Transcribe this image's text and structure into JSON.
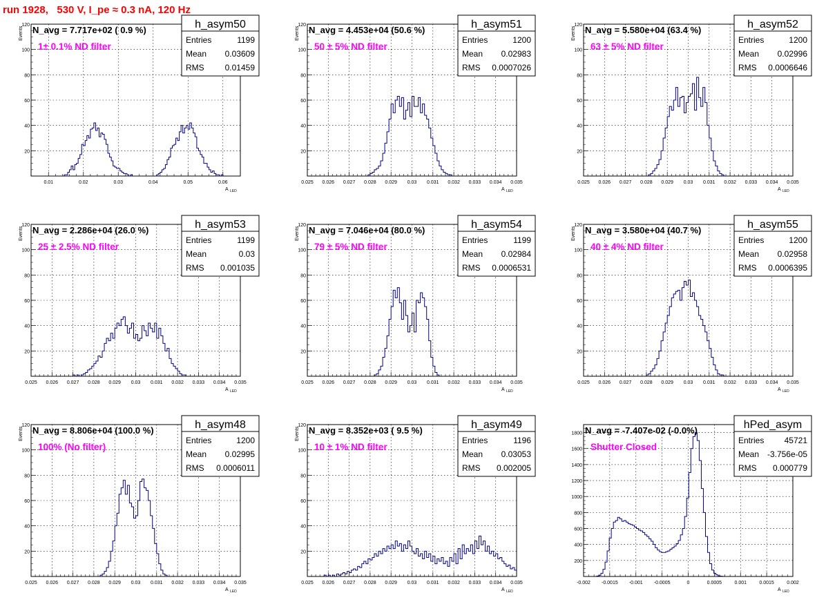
{
  "page": {
    "title": "run 1928,   530 V, I_pe ≈ 0.3 nA, 120 Hz"
  },
  "colors": {
    "title": "#ff0000",
    "histogram": "#00008b",
    "annotation": "#ff00ff",
    "grid": "#000000"
  },
  "chart_data": [
    {
      "type": "bar",
      "name": "h_asym50",
      "navg": "N_avg = 7.717e+02 ( 0.9 %)",
      "filter": "1± 0.1% ND filter",
      "stats": [
        {
          "label": "Entries",
          "value": "1199"
        },
        {
          "label": "Mean",
          "value": "0.03609"
        },
        {
          "label": "RMS",
          "value": "0.01459"
        }
      ],
      "xlabel": "A",
      "xlabel_sub": "LED",
      "ylabel": "Events",
      "xlim": [
        0.005,
        0.065
      ],
      "ylim": [
        0,
        120
      ],
      "xticks": [
        0.01,
        0.02,
        0.03,
        0.04,
        0.05,
        0.06
      ],
      "xtick_labels": [
        "0.01",
        "0.02",
        "0.03",
        "0.04",
        "0.05",
        "0.06"
      ],
      "yticks": [
        20,
        40,
        60,
        80,
        100,
        120
      ],
      "xmin": 0.005,
      "binw": 0.0005,
      "values": [
        0,
        0,
        0,
        0,
        0,
        0,
        0,
        0,
        0,
        0,
        0,
        0,
        0,
        0,
        0,
        0,
        0,
        0,
        0,
        1,
        1,
        3,
        5,
        8,
        5,
        9,
        10,
        14,
        17,
        25,
        24,
        28,
        32,
        30,
        37,
        38,
        42,
        36,
        38,
        31,
        34,
        33,
        29,
        25,
        18,
        15,
        12,
        8,
        7,
        6,
        6,
        4,
        3,
        2,
        2,
        1,
        0,
        1,
        0,
        0,
        0,
        0,
        0,
        0,
        0,
        0,
        0,
        0,
        0,
        0,
        0,
        0,
        1,
        2,
        3,
        5,
        6,
        9,
        13,
        15,
        22,
        24,
        25,
        30,
        28,
        35,
        40,
        34,
        38,
        40,
        37,
        42,
        38,
        34,
        31,
        22,
        20,
        17,
        15,
        10,
        10,
        7,
        5,
        3,
        4,
        2,
        1,
        1,
        0,
        1,
        0,
        0,
        0,
        0,
        0,
        0,
        0,
        0,
        0,
        0,
        0
      ]
    },
    {
      "type": "bar",
      "name": "h_asym51",
      "navg": "N_avg = 4.453e+04 (50.6 %)",
      "filter": "50 ± 5% ND filter",
      "stats": [
        {
          "label": "Entries",
          "value": "1200"
        },
        {
          "label": "Mean",
          "value": "0.02983"
        },
        {
          "label": "RMS",
          "value": "0.0007026"
        }
      ],
      "xlabel": "A",
      "xlabel_sub": "LED",
      "ylabel": "Events",
      "xlim": [
        0.025,
        0.035
      ],
      "ylim": [
        0,
        120
      ],
      "xticks": [
        0.025,
        0.026,
        0.027,
        0.028,
        0.029,
        0.03,
        0.031,
        0.032,
        0.033,
        0.034,
        0.035
      ],
      "xtick_labels": [
        "0.025",
        "0.026",
        "0.027",
        "0.028",
        "0.029",
        "0.03",
        "0.031",
        "0.032",
        "0.033",
        "0.034",
        "0.035"
      ],
      "yticks": [
        20,
        40,
        60,
        80,
        100,
        120
      ],
      "xmin": 0.0279,
      "binw": 0.0001,
      "values": [
        1,
        2,
        3,
        5,
        6,
        8,
        12,
        18,
        26,
        35,
        45,
        57,
        50,
        60,
        63,
        55,
        62,
        45,
        52,
        58,
        47,
        63,
        55,
        55,
        62,
        50,
        57,
        48,
        45,
        38,
        30,
        24,
        18,
        12,
        8,
        5,
        3,
        2,
        1,
        1
      ]
    },
    {
      "type": "bar",
      "name": "h_asym52",
      "navg": "N_avg = 5.580e+04 (63.4 %)",
      "filter": "63 ± 5% ND filter",
      "stats": [
        {
          "label": "Entries",
          "value": "1200"
        },
        {
          "label": "Mean",
          "value": "0.02996"
        },
        {
          "label": "RMS",
          "value": "0.0006646"
        }
      ],
      "xlabel": "A",
      "xlabel_sub": "LED",
      "ylabel": "Events",
      "xlim": [
        0.025,
        0.035
      ],
      "ylim": [
        0,
        120
      ],
      "xticks": [
        0.025,
        0.026,
        0.027,
        0.028,
        0.029,
        0.03,
        0.031,
        0.032,
        0.033,
        0.034,
        0.035
      ],
      "xtick_labels": [
        "0.025",
        "0.026",
        "0.027",
        "0.028",
        "0.029",
        "0.03",
        "0.031",
        "0.032",
        "0.033",
        "0.034",
        "0.035"
      ],
      "yticks": [
        20,
        40,
        60,
        80,
        100,
        120
      ],
      "xmin": 0.0281,
      "binw": 0.0001,
      "values": [
        1,
        2,
        4,
        6,
        9,
        13,
        20,
        30,
        38,
        47,
        55,
        52,
        60,
        70,
        55,
        62,
        63,
        50,
        58,
        63,
        65,
        73,
        52,
        78,
        62,
        55,
        70,
        58,
        40,
        30,
        20,
        12,
        8,
        4,
        2,
        1
      ]
    },
    {
      "type": "bar",
      "name": "h_asym53",
      "navg": "N_avg = 2.286e+04 (26.0 %)",
      "filter": "25 ± 2.5% ND filter",
      "stats": [
        {
          "label": "Entries",
          "value": "1199"
        },
        {
          "label": "Mean",
          "value": "0.03"
        },
        {
          "label": "RMS",
          "value": "0.001035"
        }
      ],
      "xlabel": "A",
      "xlabel_sub": "LED",
      "ylabel": "Events",
      "xlim": [
        0.025,
        0.035
      ],
      "ylim": [
        0,
        120
      ],
      "xticks": [
        0.025,
        0.026,
        0.027,
        0.028,
        0.029,
        0.03,
        0.031,
        0.032,
        0.033,
        0.034,
        0.035
      ],
      "xtick_labels": [
        "0.025",
        "0.026",
        "0.027",
        "0.028",
        "0.029",
        "0.03",
        "0.031",
        "0.032",
        "0.033",
        "0.034",
        "0.035"
      ],
      "yticks": [
        20,
        40,
        60,
        80,
        100,
        120
      ],
      "xmin": 0.027,
      "binw": 0.0001,
      "values": [
        1,
        0,
        1,
        0,
        1,
        2,
        3,
        5,
        6,
        8,
        10,
        12,
        16,
        15,
        20,
        26,
        30,
        28,
        34,
        30,
        38,
        42,
        40,
        45,
        47,
        40,
        34,
        38,
        42,
        30,
        33,
        28,
        30,
        40,
        36,
        32,
        42,
        38,
        35,
        42,
        30,
        38,
        32,
        26,
        20,
        22,
        14,
        10,
        8,
        6,
        4,
        2,
        1,
        1
      ]
    },
    {
      "type": "bar",
      "name": "h_asym54",
      "navg": "N_avg = 7.046e+04 (80.0 %)",
      "filter": "79 ± 5% ND filter",
      "stats": [
        {
          "label": "Entries",
          "value": "1199"
        },
        {
          "label": "Mean",
          "value": "0.02984"
        },
        {
          "label": "RMS",
          "value": "0.0006531"
        }
      ],
      "xlabel": "A",
      "xlabel_sub": "LED",
      "ylabel": "Events",
      "xlim": [
        0.025,
        0.035
      ],
      "ylim": [
        0,
        120
      ],
      "xticks": [
        0.025,
        0.026,
        0.027,
        0.028,
        0.029,
        0.03,
        0.031,
        0.032,
        0.033,
        0.034,
        0.035
      ],
      "xtick_labels": [
        "0.025",
        "0.026",
        "0.027",
        "0.028",
        "0.029",
        "0.03",
        "0.031",
        "0.032",
        "0.033",
        "0.034",
        "0.035"
      ],
      "yticks": [
        20,
        40,
        60,
        80,
        100,
        120
      ],
      "xmin": 0.0282,
      "binw": 0.0001,
      "values": [
        1,
        2,
        5,
        8,
        15,
        22,
        32,
        45,
        55,
        68,
        62,
        70,
        58,
        45,
        60,
        48,
        35,
        40,
        50,
        35,
        60,
        58,
        66,
        62,
        55,
        45,
        28,
        15,
        8,
        3,
        1
      ]
    },
    {
      "type": "bar",
      "name": "h_asym55",
      "navg": "N_avg = 3.580e+04 (40.7 %)",
      "filter": "40 ± 4% ND filter",
      "stats": [
        {
          "label": "Entries",
          "value": "1200"
        },
        {
          "label": "Mean",
          "value": "0.02958"
        },
        {
          "label": "RMS",
          "value": "0.0006395"
        }
      ],
      "xlabel": "A",
      "xlabel_sub": "LED",
      "ylabel": "Events",
      "xlim": [
        0.025,
        0.035
      ],
      "ylim": [
        0,
        120
      ],
      "xticks": [
        0.025,
        0.026,
        0.027,
        0.028,
        0.029,
        0.03,
        0.031,
        0.032,
        0.033,
        0.034,
        0.035
      ],
      "xtick_labels": [
        "0.025",
        "0.026",
        "0.027",
        "0.028",
        "0.029",
        "0.03",
        "0.031",
        "0.032",
        "0.033",
        "0.034",
        "0.035"
      ],
      "yticks": [
        20,
        40,
        60,
        80,
        100,
        120
      ],
      "xmin": 0.028,
      "binw": 0.0001,
      "values": [
        1,
        2,
        4,
        6,
        9,
        14,
        20,
        28,
        35,
        42,
        48,
        55,
        62,
        65,
        67,
        68,
        60,
        70,
        75,
        72,
        76,
        63,
        66,
        60,
        55,
        48,
        45,
        40,
        35,
        28,
        22,
        15,
        9,
        5,
        2,
        1,
        1
      ]
    },
    {
      "type": "bar",
      "name": "h_asym48",
      "navg": "N_avg = 8.806e+04 (100.0 %)",
      "filter": "100% (No filter)",
      "stats": [
        {
          "label": "Entries",
          "value": "1200"
        },
        {
          "label": "Mean",
          "value": "0.02995"
        },
        {
          "label": "RMS",
          "value": "0.0006011"
        }
      ],
      "xlabel": "A",
      "xlabel_sub": "LED",
      "ylabel": "Events",
      "xlim": [
        0.025,
        0.035
      ],
      "ylim": [
        0,
        120
      ],
      "xticks": [
        0.025,
        0.026,
        0.027,
        0.028,
        0.029,
        0.03,
        0.031,
        0.032,
        0.033,
        0.034,
        0.035
      ],
      "xtick_labels": [
        "0.025",
        "0.026",
        "0.027",
        "0.028",
        "0.029",
        "0.03",
        "0.031",
        "0.032",
        "0.033",
        "0.034",
        "0.035"
      ],
      "yticks": [
        20,
        40,
        60,
        80,
        100,
        120
      ],
      "xmin": 0.0283,
      "binw": 0.0001,
      "values": [
        1,
        2,
        4,
        7,
        12,
        20,
        28,
        40,
        50,
        65,
        70,
        76,
        65,
        72,
        58,
        55,
        46,
        48,
        60,
        75,
        77,
        70,
        68,
        60,
        48,
        38,
        26,
        18,
        10,
        5,
        2,
        1
      ]
    },
    {
      "type": "bar",
      "name": "h_asym49",
      "navg": "N_avg = 8.352e+03 ( 9.5 %)",
      "filter": "10 ± 1% ND filter",
      "stats": [
        {
          "label": "Entries",
          "value": "1196"
        },
        {
          "label": "Mean",
          "value": "0.03053"
        },
        {
          "label": "RMS",
          "value": "0.002005"
        }
      ],
      "xlabel": "A",
      "xlabel_sub": "LED",
      "ylabel": "Events",
      "xlim": [
        0.025,
        0.035
      ],
      "ylim": [
        0,
        120
      ],
      "xticks": [
        0.025,
        0.026,
        0.027,
        0.028,
        0.029,
        0.03,
        0.031,
        0.032,
        0.033,
        0.034,
        0.035
      ],
      "xtick_labels": [
        "0.025",
        "0.026",
        "0.027",
        "0.028",
        "0.029",
        "0.03",
        "0.031",
        "0.032",
        "0.033",
        "0.034",
        "0.035"
      ],
      "yticks": [
        20,
        40,
        60,
        80,
        100,
        120
      ],
      "xmin": 0.0258,
      "binw": 0.0001,
      "values": [
        1,
        0,
        1,
        0,
        1,
        0,
        2,
        1,
        2,
        3,
        2,
        4,
        3,
        5,
        6,
        5,
        8,
        7,
        10,
        12,
        10,
        14,
        13,
        15,
        18,
        16,
        20,
        18,
        22,
        20,
        24,
        22,
        25,
        22,
        28,
        24,
        26,
        20,
        25,
        22,
        28,
        24,
        20,
        18,
        22,
        16,
        18,
        14,
        20,
        15,
        18,
        12,
        16,
        10,
        14,
        12,
        15,
        10,
        12,
        8,
        15,
        12,
        18,
        10,
        22,
        14,
        25,
        18,
        22,
        20,
        25,
        18,
        28,
        22,
        32,
        25,
        28,
        20,
        24,
        18,
        20,
        16,
        18,
        14,
        15,
        12,
        10,
        8,
        9,
        6,
        7,
        5,
        4,
        3,
        4,
        2,
        3,
        2,
        1,
        1,
        0,
        2,
        1,
        0,
        1
      ]
    },
    {
      "type": "bar",
      "name": "hPed_asym",
      "navg": "N_avg = -7.407e-02 (-0.0%)",
      "filter": "Shutter Closed",
      "stats": [
        {
          "label": "Entries",
          "value": "45721"
        },
        {
          "label": "Mean",
          "value": "-3.756e-05"
        },
        {
          "label": "RMS",
          "value": "0.000779"
        }
      ],
      "xlabel": "A",
      "xlabel_sub": "LED",
      "ylabel": "",
      "xlim": [
        -0.002,
        0.002
      ],
      "ylim": [
        0,
        1900
      ],
      "xticks": [
        -0.002,
        -0.0015,
        -0.001,
        -0.0005,
        0,
        0.0005,
        0.001,
        0.0015,
        0.002
      ],
      "xtick_labels": [
        "-0.002",
        "-0.0015",
        "-0.001",
        "-0.0005",
        "0",
        "0.0005",
        "0.001",
        "0.0015",
        "0.002"
      ],
      "yticks": [
        200,
        400,
        600,
        800,
        1000,
        1200,
        1400,
        1600,
        1800
      ],
      "xmin": -0.00175,
      "binw": 4e-05,
      "values": [
        5,
        15,
        40,
        90,
        180,
        320,
        480,
        600,
        680,
        700,
        740,
        720,
        690,
        700,
        680,
        660,
        650,
        640,
        620,
        600,
        580,
        570,
        550,
        520,
        500,
        470,
        440,
        400,
        360,
        330,
        310,
        300,
        300,
        310,
        320,
        340,
        360,
        380,
        410,
        450,
        520,
        600,
        750,
        980,
        1300,
        1600,
        1750,
        1800,
        1700,
        1450,
        1100,
        800,
        500,
        300,
        160,
        80,
        40,
        20,
        8,
        3,
        1
      ]
    }
  ]
}
